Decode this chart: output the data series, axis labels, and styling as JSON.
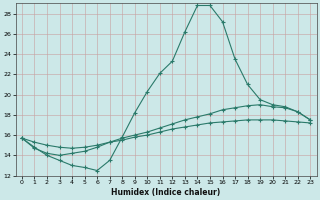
{
  "xlabel": "Humidex (Indice chaleur)",
  "ylabel": "",
  "bg_color": "#cce8e8",
  "line_color": "#2a7a6a",
  "xlim": [
    -0.5,
    23.5
  ],
  "ylim": [
    12,
    29
  ],
  "xticks": [
    0,
    1,
    2,
    3,
    4,
    5,
    6,
    7,
    8,
    9,
    10,
    11,
    12,
    13,
    14,
    15,
    16,
    17,
    18,
    19,
    20,
    21,
    22,
    23
  ],
  "yticks": [
    12,
    14,
    16,
    18,
    20,
    22,
    24,
    26,
    28
  ],
  "series1": [
    [
      0,
      15.7
    ],
    [
      1,
      14.8
    ],
    [
      2,
      14.0
    ],
    [
      3,
      13.5
    ],
    [
      4,
      13.0
    ],
    [
      5,
      12.8
    ],
    [
      6,
      12.5
    ],
    [
      7,
      13.5
    ],
    [
      8,
      15.8
    ],
    [
      9,
      18.2
    ],
    [
      10,
      20.3
    ],
    [
      11,
      22.1
    ],
    [
      12,
      23.3
    ],
    [
      13,
      26.2
    ],
    [
      14,
      28.8
    ],
    [
      15,
      28.8
    ],
    [
      16,
      27.2
    ],
    [
      17,
      23.5
    ],
    [
      18,
      21.0
    ],
    [
      19,
      19.5
    ],
    [
      20,
      19.0
    ],
    [
      21,
      18.8
    ],
    [
      22,
      18.3
    ],
    [
      23,
      17.5
    ]
  ],
  "series2": [
    [
      0,
      15.7
    ],
    [
      1,
      14.7
    ],
    [
      2,
      14.2
    ],
    [
      3,
      14.0
    ],
    [
      4,
      14.2
    ],
    [
      5,
      14.4
    ],
    [
      6,
      14.8
    ],
    [
      7,
      15.3
    ],
    [
      8,
      15.7
    ],
    [
      9,
      16.0
    ],
    [
      10,
      16.3
    ],
    [
      11,
      16.7
    ],
    [
      12,
      17.1
    ],
    [
      13,
      17.5
    ],
    [
      14,
      17.8
    ],
    [
      15,
      18.1
    ],
    [
      16,
      18.5
    ],
    [
      17,
      18.7
    ],
    [
      18,
      18.9
    ],
    [
      19,
      19.0
    ],
    [
      20,
      18.8
    ],
    [
      21,
      18.7
    ],
    [
      22,
      18.3
    ],
    [
      23,
      17.5
    ]
  ],
  "series3": [
    [
      0,
      15.7
    ],
    [
      1,
      15.3
    ],
    [
      2,
      15.0
    ],
    [
      3,
      14.8
    ],
    [
      4,
      14.7
    ],
    [
      5,
      14.8
    ],
    [
      6,
      15.0
    ],
    [
      7,
      15.3
    ],
    [
      8,
      15.5
    ],
    [
      9,
      15.8
    ],
    [
      10,
      16.0
    ],
    [
      11,
      16.3
    ],
    [
      12,
      16.6
    ],
    [
      13,
      16.8
    ],
    [
      14,
      17.0
    ],
    [
      15,
      17.2
    ],
    [
      16,
      17.3
    ],
    [
      17,
      17.4
    ],
    [
      18,
      17.5
    ],
    [
      19,
      17.5
    ],
    [
      20,
      17.5
    ],
    [
      21,
      17.4
    ],
    [
      22,
      17.3
    ],
    [
      23,
      17.2
    ]
  ]
}
